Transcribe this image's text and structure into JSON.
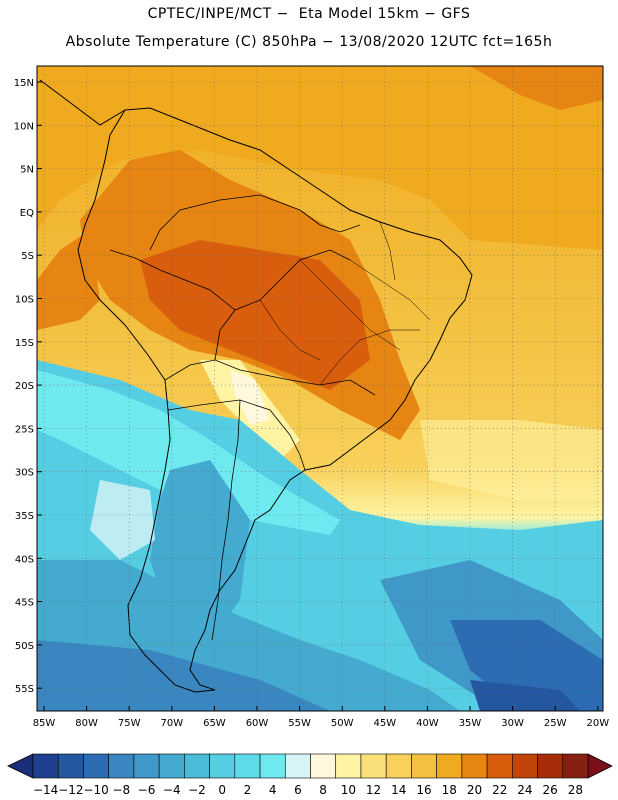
{
  "header": {
    "title_line1": "CPTEC/INPE/MCT −  Eta Model 15km − GFS",
    "title_line2": "Absolute Temperature (C) 850hPa − 13/08/2020 12UTC fct=165h"
  },
  "map": {
    "lat_labels": [
      "15N",
      "10N",
      "5N",
      "EQ",
      "5S",
      "10S",
      "15S",
      "20S",
      "25S",
      "30S",
      "35S",
      "40S",
      "45S",
      "50S",
      "55S"
    ],
    "lon_labels": [
      "85W",
      "80W",
      "75W",
      "70W",
      "65W",
      "60W",
      "55W",
      "50W",
      "45W",
      "40W",
      "35W",
      "30W",
      "25W",
      "20W"
    ]
  },
  "colorbar": {
    "ticks": [
      "−14",
      "−12",
      "−10",
      "−8",
      "−6",
      "−4",
      "−2",
      "0",
      "2",
      "4",
      "6",
      "8",
      "10",
      "12",
      "14",
      "16",
      "18",
      "20",
      "22",
      "24",
      "26",
      "28"
    ],
    "colors": [
      "#1f3f8f",
      "#2556a0",
      "#2c6cb2",
      "#3a86c0",
      "#3f98c8",
      "#45aacf",
      "#4bbcd8",
      "#55cde2",
      "#5fdcea",
      "#6ee9ef",
      "#d7f4f6",
      "#fff8dc",
      "#fff4a4",
      "#fbe07a",
      "#f8d05a",
      "#f3c03f",
      "#f0aa20",
      "#e68512",
      "#d85d0c",
      "#c24409",
      "#a52d07",
      "#862010"
    ],
    "end_colors": {
      "low": "#1a2f78",
      "high": "#7a0e1c"
    }
  }
}
